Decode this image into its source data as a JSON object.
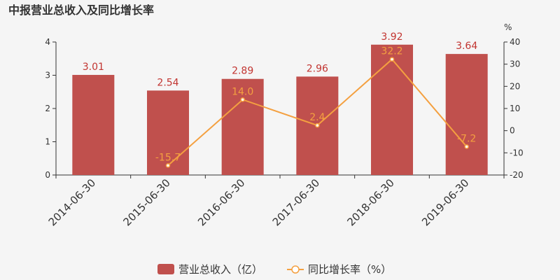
{
  "chart_data": {
    "type": "bar",
    "title": "中报营业总收入及同比增长率",
    "categories": [
      "2014-06-30",
      "2015-06-30",
      "2016-06-30",
      "2017-06-30",
      "2018-06-30",
      "2019-06-30"
    ],
    "series": [
      {
        "name": "营业总收入（亿）",
        "type": "bar",
        "axis": "left",
        "color": "#c0504d",
        "values": [
          3.01,
          2.54,
          2.89,
          2.96,
          3.92,
          3.64
        ],
        "labels": [
          "3.01",
          "2.54",
          "2.89",
          "2.96",
          "3.92",
          "3.64"
        ]
      },
      {
        "name": "同比增长率（%）",
        "type": "line",
        "axis": "right",
        "color": "#f4a040",
        "values": [
          null,
          -15.7,
          14.0,
          2.4,
          32.2,
          -7.2
        ],
        "labels": [
          "",
          "-15.7",
          "14.0",
          "2.4",
          "32.2",
          "-7.2"
        ]
      }
    ],
    "y_left": {
      "range": [
        0,
        4
      ],
      "ticks": [
        "0",
        "1",
        "2",
        "3",
        "4"
      ]
    },
    "y_right": {
      "range": [
        -20,
        40
      ],
      "ticks": [
        "-20",
        "-10",
        "0",
        "10",
        "20",
        "30",
        "40"
      ],
      "unit": "%"
    },
    "legend_position": "bottom-center",
    "grid": false
  }
}
